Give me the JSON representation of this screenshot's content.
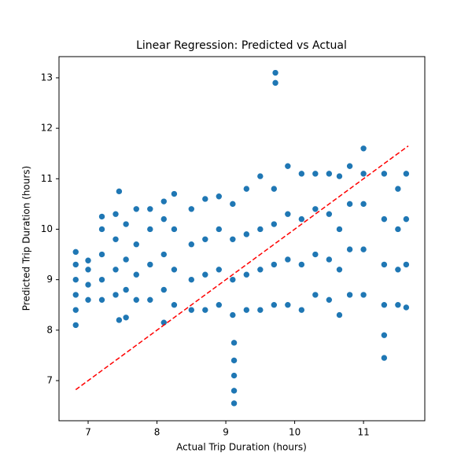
{
  "chart_data": {
    "type": "scatter",
    "title": "Linear Regression: Predicted vs Actual",
    "x_label": "Actual Trip Duration (hours)",
    "y_label": "Predicted Trip Duration (hours)",
    "x": [
      6.82,
      6.82,
      6.82,
      6.82,
      6.82,
      6.82,
      7.0,
      7.0,
      7.0,
      7.0,
      7.2,
      7.2,
      7.2,
      7.2,
      7.2,
      7.4,
      7.4,
      7.4,
      7.4,
      7.45,
      7.45,
      7.55,
      7.55,
      7.55,
      7.55,
      7.7,
      7.7,
      7.7,
      7.7,
      7.9,
      7.9,
      7.9,
      7.9,
      8.1,
      8.1,
      8.1,
      8.1,
      8.1,
      8.25,
      8.25,
      8.25,
      8.25,
      8.5,
      8.5,
      8.5,
      8.5,
      8.7,
      8.7,
      8.7,
      8.7,
      8.9,
      8.9,
      8.9,
      8.9,
      9.12,
      9.12,
      9.12,
      9.12,
      9.12,
      9.1,
      9.1,
      9.1,
      9.1,
      9.3,
      9.3,
      9.3,
      9.3,
      9.5,
      9.5,
      9.5,
      9.5,
      9.72,
      9.72,
      9.7,
      9.7,
      9.7,
      9.7,
      9.9,
      9.9,
      9.9,
      9.9,
      10.1,
      10.1,
      10.1,
      10.1,
      10.3,
      10.3,
      10.3,
      10.3,
      10.5,
      10.5,
      10.5,
      10.5,
      10.65,
      10.65,
      10.65,
      10.65,
      10.8,
      10.8,
      10.8,
      10.8,
      11.0,
      11.0,
      11.0,
      11.0,
      11.0,
      11.3,
      11.3,
      11.3,
      11.3,
      11.3,
      11.3,
      11.5,
      11.5,
      11.5,
      11.5,
      11.62,
      11.62,
      11.62,
      11.62
    ],
    "series": [
      {
        "color": "#1f77b4",
        "values": [
          8.1,
          8.4,
          8.7,
          9.0,
          9.3,
          9.55,
          8.6,
          8.9,
          9.2,
          9.38,
          8.6,
          9.0,
          9.5,
          10.0,
          10.25,
          8.7,
          9.2,
          9.8,
          10.3,
          10.75,
          8.2,
          8.25,
          8.8,
          9.4,
          10.1,
          8.6,
          9.1,
          9.7,
          10.4,
          8.6,
          9.3,
          10.0,
          10.4,
          8.15,
          8.8,
          9.5,
          10.2,
          10.55,
          8.5,
          9.2,
          10.0,
          10.7,
          8.4,
          9.0,
          9.7,
          10.4,
          8.4,
          9.1,
          9.8,
          10.6,
          8.5,
          9.2,
          10.0,
          10.65,
          6.55,
          6.8,
          7.1,
          7.4,
          7.75,
          8.3,
          9.0,
          9.8,
          10.5,
          8.4,
          9.1,
          9.9,
          10.8,
          8.4,
          9.2,
          10.0,
          11.05,
          12.9,
          13.1,
          8.5,
          9.3,
          10.1,
          10.8,
          8.5,
          9.4,
          10.3,
          11.25,
          8.4,
          9.3,
          10.2,
          11.1,
          8.7,
          9.5,
          10.4,
          11.1,
          8.6,
          9.4,
          10.3,
          11.1,
          8.3,
          9.2,
          10.0,
          11.05,
          8.7,
          9.6,
          10.5,
          11.25,
          8.7,
          9.6,
          10.5,
          11.1,
          11.6,
          7.45,
          7.9,
          8.5,
          9.3,
          10.2,
          11.1,
          8.5,
          9.2,
          10.0,
          10.8,
          8.45,
          9.3,
          10.2,
          11.1
        ]
      }
    ],
    "reference_line": {
      "x": [
        6.82,
        11.65
      ],
      "values": [
        6.82,
        11.65
      ],
      "color": "#ff0000"
    },
    "xlim": [
      6.577,
      11.89
    ],
    "ylim": [
      6.205,
      13.42
    ],
    "xticks": [
      7,
      8,
      9,
      10,
      11
    ],
    "yticks": [
      7,
      8,
      9,
      10,
      11,
      12,
      13
    ]
  }
}
